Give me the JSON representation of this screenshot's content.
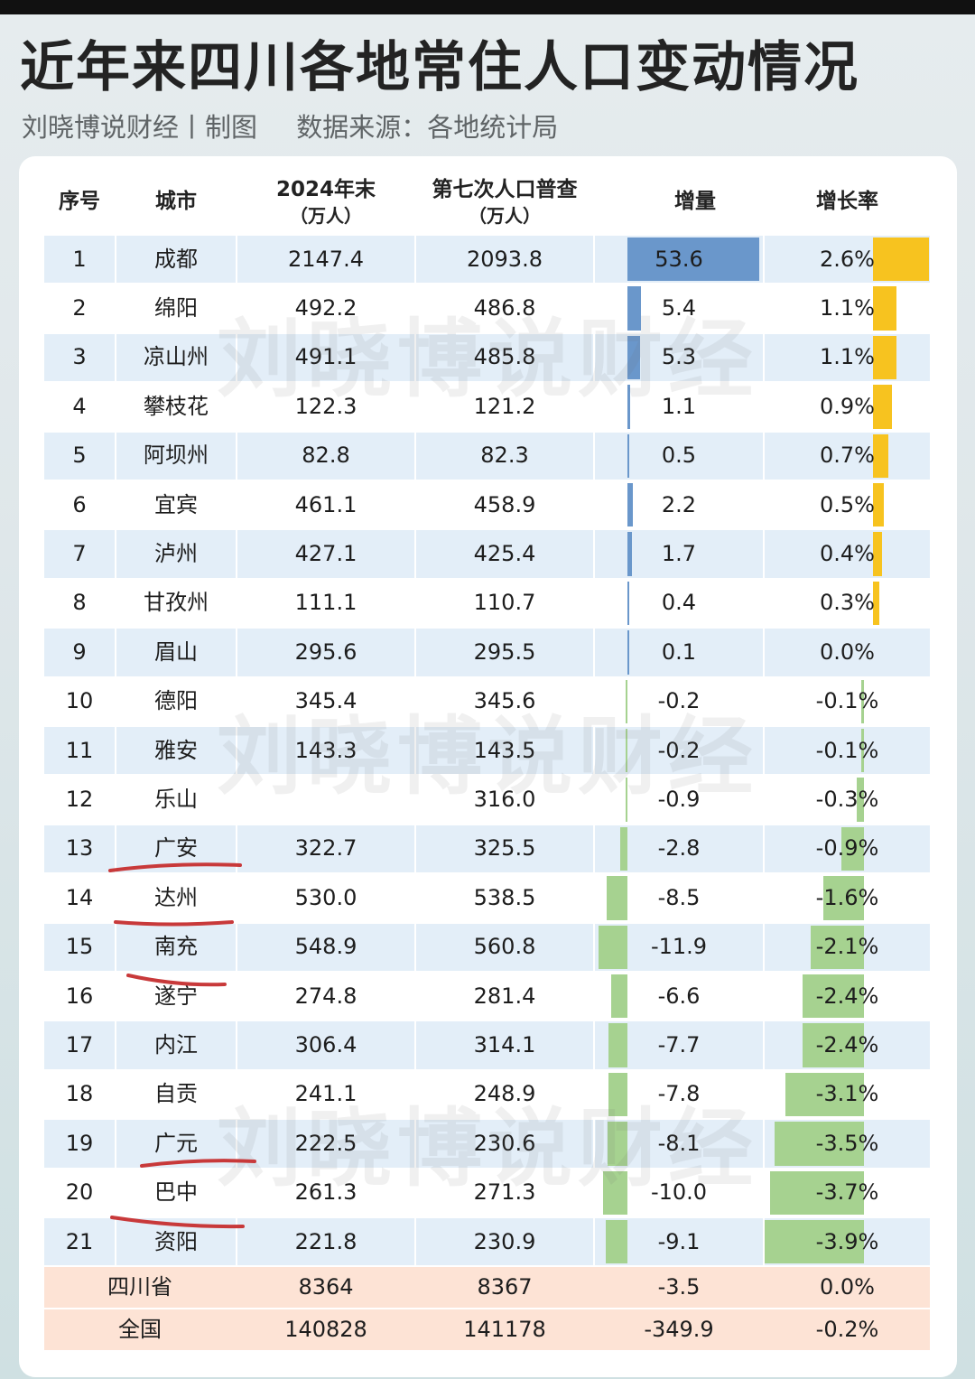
{
  "title": "近年来四川各地常住人口变动情况",
  "subtitle": {
    "author": "刘晓博说财经丨制图",
    "source": "数据来源：各地统计局"
  },
  "watermark": "刘晓博说财经",
  "colors": {
    "increase_bar": "#6a97cb",
    "decrease_bar": "#a6d290",
    "rate_up_bar": "#f7c31f",
    "row_band": "#e3eef8",
    "total_band": "#fde3d5",
    "annotation_line": "#c8393a"
  },
  "annotations": {
    "underlined_cities": [
      "广安",
      "达州",
      "南充",
      "广元",
      "巴中"
    ]
  },
  "chart_data": {
    "type": "table",
    "columns": [
      {
        "label": "序号"
      },
      {
        "label": "城市"
      },
      {
        "label": "2024年末",
        "unit": "（万人）"
      },
      {
        "label": "第七次人口普查",
        "unit": "（万人）"
      },
      {
        "label": "增量"
      },
      {
        "label": "增长率"
      }
    ],
    "rows": [
      {
        "no": "1",
        "city": "成都",
        "pop_2024": "2147.4",
        "census7": "2093.8",
        "change": 53.6,
        "change_text": "53.6",
        "rate": 2.6,
        "rate_text": "2.6%"
      },
      {
        "no": "2",
        "city": "绵阳",
        "pop_2024": "492.2",
        "census7": "486.8",
        "change": 5.4,
        "change_text": "5.4",
        "rate": 1.1,
        "rate_text": "1.1%"
      },
      {
        "no": "3",
        "city": "凉山州",
        "pop_2024": "491.1",
        "census7": "485.8",
        "change": 5.3,
        "change_text": "5.3",
        "rate": 1.1,
        "rate_text": "1.1%"
      },
      {
        "no": "4",
        "city": "攀枝花",
        "pop_2024": "122.3",
        "census7": "121.2",
        "change": 1.1,
        "change_text": "1.1",
        "rate": 0.9,
        "rate_text": "0.9%"
      },
      {
        "no": "5",
        "city": "阿坝州",
        "pop_2024": "82.8",
        "census7": "82.3",
        "change": 0.5,
        "change_text": "0.5",
        "rate": 0.7,
        "rate_text": "0.7%"
      },
      {
        "no": "6",
        "city": "宜宾",
        "pop_2024": "461.1",
        "census7": "458.9",
        "change": 2.2,
        "change_text": "2.2",
        "rate": 0.5,
        "rate_text": "0.5%"
      },
      {
        "no": "7",
        "city": "泸州",
        "pop_2024": "427.1",
        "census7": "425.4",
        "change": 1.7,
        "change_text": "1.7",
        "rate": 0.4,
        "rate_text": "0.4%"
      },
      {
        "no": "8",
        "city": "甘孜州",
        "pop_2024": "111.1",
        "census7": "110.7",
        "change": 0.4,
        "change_text": "0.4",
        "rate": 0.3,
        "rate_text": "0.3%"
      },
      {
        "no": "9",
        "city": "眉山",
        "pop_2024": "295.6",
        "census7": "295.5",
        "change": 0.1,
        "change_text": "0.1",
        "rate": 0.0,
        "rate_text": "0.0%"
      },
      {
        "no": "10",
        "city": "德阳",
        "pop_2024": "345.4",
        "census7": "345.6",
        "change": -0.2,
        "change_text": "-0.2",
        "rate": -0.1,
        "rate_text": "-0.1%"
      },
      {
        "no": "11",
        "city": "雅安",
        "pop_2024": "143.3",
        "census7": "143.5",
        "change": -0.2,
        "change_text": "-0.2",
        "rate": -0.1,
        "rate_text": "-0.1%"
      },
      {
        "no": "12",
        "city": "乐山",
        "pop_2024": "",
        "census7": "316.0",
        "change": -0.9,
        "change_text": "-0.9",
        "rate": -0.3,
        "rate_text": "-0.3%"
      },
      {
        "no": "13",
        "city": "广安",
        "pop_2024": "322.7",
        "census7": "325.5",
        "change": -2.8,
        "change_text": "-2.8",
        "rate": -0.9,
        "rate_text": "-0.9%"
      },
      {
        "no": "14",
        "city": "达州",
        "pop_2024": "530.0",
        "census7": "538.5",
        "change": -8.5,
        "change_text": "-8.5",
        "rate": -1.6,
        "rate_text": "-1.6%"
      },
      {
        "no": "15",
        "city": "南充",
        "pop_2024": "548.9",
        "census7": "560.8",
        "change": -11.9,
        "change_text": "-11.9",
        "rate": -2.1,
        "rate_text": "-2.1%"
      },
      {
        "no": "16",
        "city": "遂宁",
        "pop_2024": "274.8",
        "census7": "281.4",
        "change": -6.6,
        "change_text": "-6.6",
        "rate": -2.4,
        "rate_text": "-2.4%"
      },
      {
        "no": "17",
        "city": "内江",
        "pop_2024": "306.4",
        "census7": "314.1",
        "change": -7.7,
        "change_text": "-7.7",
        "rate": -2.4,
        "rate_text": "-2.4%"
      },
      {
        "no": "18",
        "city": "自贡",
        "pop_2024": "241.1",
        "census7": "248.9",
        "change": -7.8,
        "change_text": "-7.8",
        "rate": -3.1,
        "rate_text": "-3.1%"
      },
      {
        "no": "19",
        "city": "广元",
        "pop_2024": "222.5",
        "census7": "230.6",
        "change": -8.1,
        "change_text": "-8.1",
        "rate": -3.5,
        "rate_text": "-3.5%"
      },
      {
        "no": "20",
        "city": "巴中",
        "pop_2024": "261.3",
        "census7": "271.3",
        "change": -10.0,
        "change_text": "-10.0",
        "rate": -3.7,
        "rate_text": "-3.7%"
      },
      {
        "no": "21",
        "city": "资阳",
        "pop_2024": "221.8",
        "census7": "230.9",
        "change": -9.1,
        "change_text": "-9.1",
        "rate": -3.9,
        "rate_text": "-3.9%"
      }
    ],
    "totals": [
      {
        "name": "四川省",
        "pop_2024": "8364",
        "census7": "8367",
        "change_text": "-3.5",
        "rate_text": "0.0%"
      },
      {
        "name": "全国",
        "pop_2024": "140828",
        "census7": "141178",
        "change_text": "-349.9",
        "rate_text": "-0.2%"
      }
    ]
  }
}
